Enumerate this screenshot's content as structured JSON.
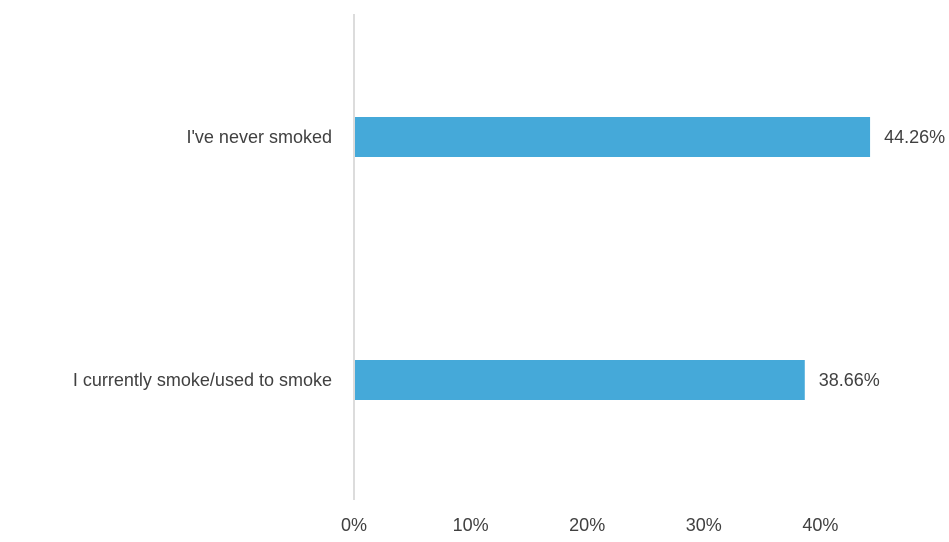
{
  "chart_data": {
    "type": "bar",
    "orientation": "horizontal",
    "title": "",
    "xlabel": "",
    "ylabel": "",
    "categories": [
      "I've never smoked",
      "I currently smoke/used to smoke"
    ],
    "values": [
      44.26,
      38.66
    ],
    "data_labels": [
      "44.26%",
      "38.66%"
    ],
    "xlim": [
      0,
      50
    ],
    "ticks": [
      0,
      10,
      20,
      30,
      40
    ],
    "tick_labels": [
      "0%",
      "10%",
      "20%",
      "30%",
      "40%"
    ],
    "grid": false,
    "legend": "none",
    "bar_color": "#45a9d9",
    "axis_color": "#d0d0d0",
    "text_color": "#404040"
  }
}
